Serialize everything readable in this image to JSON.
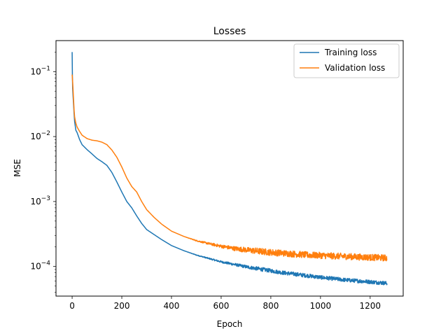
{
  "chart_data": {
    "type": "line",
    "title": "Losses",
    "xlabel": "Epoch",
    "ylabel": "MSE",
    "xlim": [
      -65,
      1333
    ],
    "ylim": [
      3.5e-05,
      0.3
    ],
    "yscale": "log",
    "grid": false,
    "legend_position": "top-right",
    "x_ticks": [
      0,
      200,
      400,
      600,
      800,
      1000,
      1200
    ],
    "x_tick_labels": [
      "0",
      "200",
      "400",
      "600",
      "800",
      "1000",
      "1200"
    ],
    "y_ticks": [
      0.0001,
      0.001,
      0.01,
      0.1
    ],
    "y_tick_labels": [
      {
        "base": "10",
        "exp": "−4"
      },
      {
        "base": "10",
        "exp": "−3"
      },
      {
        "base": "10",
        "exp": "−2"
      },
      {
        "base": "10",
        "exp": "−1"
      }
    ],
    "series": [
      {
        "name": "Training loss",
        "color": "#1f77b4",
        "noise": 0.03,
        "x": [
          0,
          1,
          2,
          4,
          6,
          8,
          10,
          15,
          20,
          30,
          40,
          60,
          80,
          100,
          120,
          140,
          160,
          180,
          200,
          220,
          240,
          260,
          280,
          300,
          330,
          360,
          400,
          450,
          500,
          550,
          600,
          650,
          700,
          750,
          800,
          850,
          900,
          950,
          1000,
          1050,
          1100,
          1150,
          1200,
          1250,
          1268
        ],
        "y": [
          0.2,
          0.09,
          0.055,
          0.04,
          0.03,
          0.022,
          0.017,
          0.0125,
          0.0115,
          0.009,
          0.0075,
          0.0063,
          0.0054,
          0.0046,
          0.0041,
          0.0036,
          0.0028,
          0.002,
          0.0014,
          0.001,
          0.0008,
          0.0006,
          0.00046,
          0.00037,
          0.00031,
          0.00026,
          0.00021,
          0.000175,
          0.00015,
          0.000133,
          0.000118,
          0.000108,
          9.9e-05,
          9.2e-05,
          8.6e-05,
          8e-05,
          7.6e-05,
          7.2e-05,
          6.8e-05,
          6.5e-05,
          6.2e-05,
          6e-05,
          5.8e-05,
          5.6e-05,
          5.5e-05
        ]
      },
      {
        "name": "Validation loss",
        "color": "#ff7f0e",
        "noise": 0.05,
        "x": [
          0,
          2,
          4,
          6,
          8,
          10,
          15,
          20,
          30,
          40,
          60,
          80,
          100,
          120,
          140,
          160,
          180,
          200,
          220,
          240,
          260,
          280,
          300,
          330,
          360,
          400,
          450,
          500,
          550,
          600,
          650,
          700,
          750,
          800,
          850,
          900,
          950,
          1000,
          1050,
          1100,
          1150,
          1200,
          1250,
          1268
        ],
        "y": [
          0.09,
          0.07,
          0.05,
          0.035,
          0.025,
          0.02,
          0.016,
          0.014,
          0.012,
          0.0105,
          0.0093,
          0.0088,
          0.0086,
          0.0082,
          0.0075,
          0.0062,
          0.0048,
          0.0034,
          0.0023,
          0.0017,
          0.0014,
          0.001,
          0.00075,
          0.00057,
          0.00045,
          0.00035,
          0.00029,
          0.00025,
          0.000225,
          0.000205,
          0.00019,
          0.00018,
          0.000172,
          0.000165,
          0.00016,
          0.000155,
          0.00015,
          0.000148,
          0.000145,
          0.000143,
          0.00014,
          0.000138,
          0.000136,
          0.000135
        ]
      }
    ]
  }
}
